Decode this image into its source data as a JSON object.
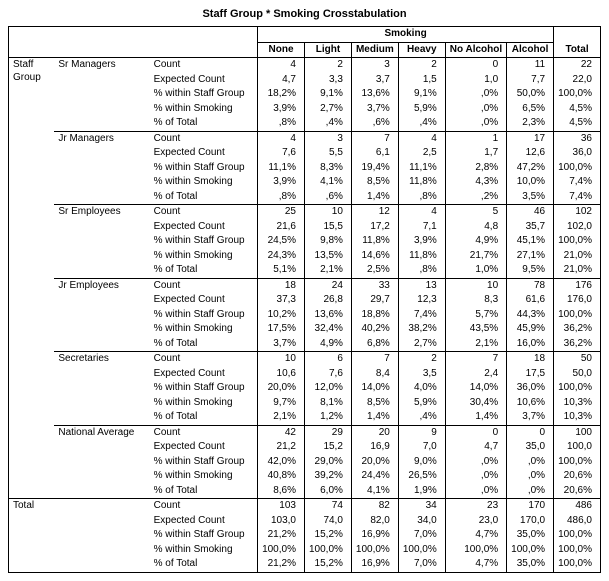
{
  "title": "Staff Group * Smoking Crosstabulation",
  "headers": {
    "group_label": "Smoking",
    "row_group_label": "Staff Group",
    "total_label": "Total",
    "cols": [
      "None",
      "Light",
      "Medium",
      "Heavy",
      "No Alcohol",
      "Alcohol"
    ]
  },
  "stat_labels": [
    "Count",
    "Expected Count",
    "% within Staff Group",
    "% within Smoking",
    "% of Total"
  ],
  "groups": [
    {
      "name": "Sr Managers",
      "rows": [
        [
          "4",
          "2",
          "3",
          "2",
          "0",
          "11",
          "22"
        ],
        [
          "4,7",
          "3,3",
          "3,7",
          "1,5",
          "1,0",
          "7,7",
          "22,0"
        ],
        [
          "18,2%",
          "9,1%",
          "13,6%",
          "9,1%",
          ",0%",
          "50,0%",
          "100,0%"
        ],
        [
          "3,9%",
          "2,7%",
          "3,7%",
          "5,9%",
          ",0%",
          "6,5%",
          "4,5%"
        ],
        [
          ",8%",
          ",4%",
          ",6%",
          ",4%",
          ",0%",
          "2,3%",
          "4,5%"
        ]
      ]
    },
    {
      "name": "Jr Managers",
      "rows": [
        [
          "4",
          "3",
          "7",
          "4",
          "1",
          "17",
          "36"
        ],
        [
          "7,6",
          "5,5",
          "6,1",
          "2,5",
          "1,7",
          "12,6",
          "36,0"
        ],
        [
          "11,1%",
          "8,3%",
          "19,4%",
          "11,1%",
          "2,8%",
          "47,2%",
          "100,0%"
        ],
        [
          "3,9%",
          "4,1%",
          "8,5%",
          "11,8%",
          "4,3%",
          "10,0%",
          "7,4%"
        ],
        [
          ",8%",
          ",6%",
          "1,4%",
          ",8%",
          ",2%",
          "3,5%",
          "7,4%"
        ]
      ]
    },
    {
      "name": "Sr Employees",
      "rows": [
        [
          "25",
          "10",
          "12",
          "4",
          "5",
          "46",
          "102"
        ],
        [
          "21,6",
          "15,5",
          "17,2",
          "7,1",
          "4,8",
          "35,7",
          "102,0"
        ],
        [
          "24,5%",
          "9,8%",
          "11,8%",
          "3,9%",
          "4,9%",
          "45,1%",
          "100,0%"
        ],
        [
          "24,3%",
          "13,5%",
          "14,6%",
          "11,8%",
          "21,7%",
          "27,1%",
          "21,0%"
        ],
        [
          "5,1%",
          "2,1%",
          "2,5%",
          ",8%",
          "1,0%",
          "9,5%",
          "21,0%"
        ]
      ]
    },
    {
      "name": "Jr Employees",
      "rows": [
        [
          "18",
          "24",
          "33",
          "13",
          "10",
          "78",
          "176"
        ],
        [
          "37,3",
          "26,8",
          "29,7",
          "12,3",
          "8,3",
          "61,6",
          "176,0"
        ],
        [
          "10,2%",
          "13,6%",
          "18,8%",
          "7,4%",
          "5,7%",
          "44,3%",
          "100,0%"
        ],
        [
          "17,5%",
          "32,4%",
          "40,2%",
          "38,2%",
          "43,5%",
          "45,9%",
          "36,2%"
        ],
        [
          "3,7%",
          "4,9%",
          "6,8%",
          "2,7%",
          "2,1%",
          "16,0%",
          "36,2%"
        ]
      ]
    },
    {
      "name": "Secretaries",
      "rows": [
        [
          "10",
          "6",
          "7",
          "2",
          "7",
          "18",
          "50"
        ],
        [
          "10,6",
          "7,6",
          "8,4",
          "3,5",
          "2,4",
          "17,5",
          "50,0"
        ],
        [
          "20,0%",
          "12,0%",
          "14,0%",
          "4,0%",
          "14,0%",
          "36,0%",
          "100,0%"
        ],
        [
          "9,7%",
          "8,1%",
          "8,5%",
          "5,9%",
          "30,4%",
          "10,6%",
          "10,3%"
        ],
        [
          "2,1%",
          "1,2%",
          "1,4%",
          ",4%",
          "1,4%",
          "3,7%",
          "10,3%"
        ]
      ]
    },
    {
      "name": "National Average",
      "rows": [
        [
          "42",
          "29",
          "20",
          "9",
          "0",
          "0",
          "100"
        ],
        [
          "21,2",
          "15,2",
          "16,9",
          "7,0",
          "4,7",
          "35,0",
          "100,0"
        ],
        [
          "42,0%",
          "29,0%",
          "20,0%",
          "9,0%",
          ",0%",
          ",0%",
          "100,0%"
        ],
        [
          "40,8%",
          "39,2%",
          "24,4%",
          "26,5%",
          ",0%",
          ",0%",
          "20,6%"
        ],
        [
          "8,6%",
          "6,0%",
          "4,1%",
          "1,9%",
          ",0%",
          ",0%",
          "20,6%"
        ]
      ]
    }
  ],
  "total": {
    "rows": [
      [
        "103",
        "74",
        "82",
        "34",
        "23",
        "170",
        "486"
      ],
      [
        "103,0",
        "74,0",
        "82,0",
        "34,0",
        "23,0",
        "170,0",
        "486,0"
      ],
      [
        "21,2%",
        "15,2%",
        "16,9%",
        "7,0%",
        "4,7%",
        "35,0%",
        "100,0%"
      ],
      [
        "100,0%",
        "100,0%",
        "100,0%",
        "100,0%",
        "100,0%",
        "100,0%",
        "100,0%"
      ],
      [
        "21,2%",
        "15,2%",
        "16,9%",
        "7,0%",
        "4,7%",
        "35,0%",
        "100,0%"
      ]
    ]
  }
}
